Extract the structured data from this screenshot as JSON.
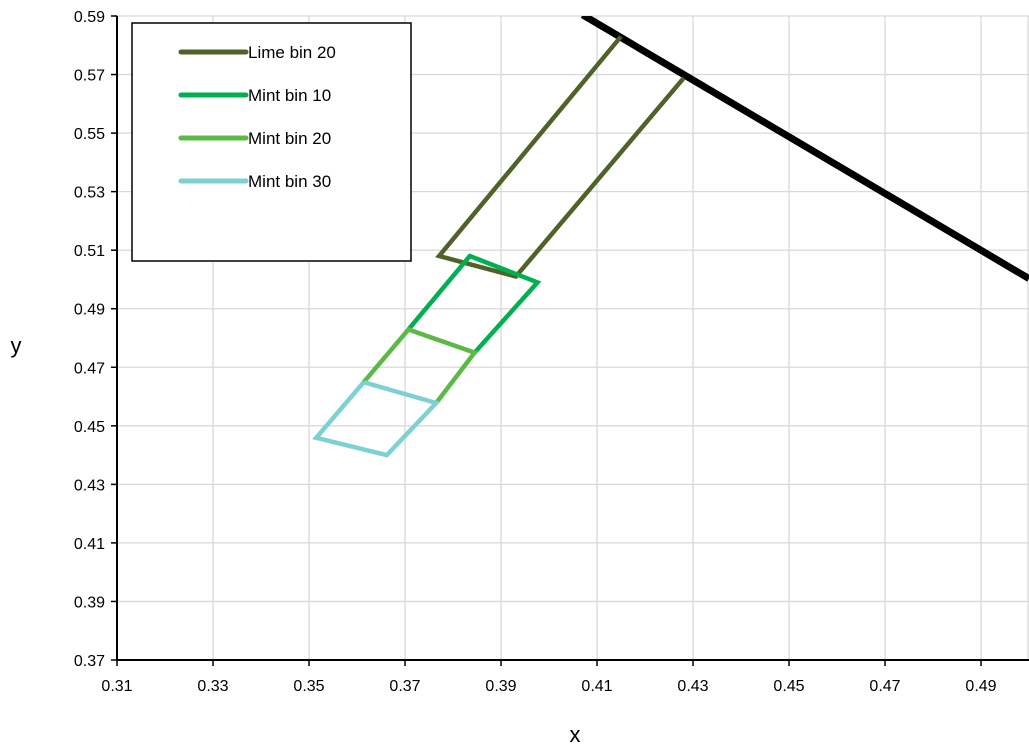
{
  "chart_data": {
    "type": "line",
    "title": "",
    "xlabel": "x",
    "ylabel": "y",
    "xlim": [
      0.31,
      0.5
    ],
    "ylim": [
      0.37,
      0.59
    ],
    "x_ticks": [
      "0.31",
      "0.33",
      "0.35",
      "0.37",
      "0.39",
      "0.41",
      "0.43",
      "0.45",
      "0.47",
      "0.49"
    ],
    "y_ticks": [
      "0.37",
      "0.39",
      "0.41",
      "0.43",
      "0.45",
      "0.47",
      "0.49",
      "0.51",
      "0.53",
      "0.55",
      "0.57",
      "0.59"
    ],
    "grid": true,
    "legend_position": "top-left",
    "series": [
      {
        "name": "",
        "color": "#000000",
        "points": [
          [
            0.407,
            0.5904
          ],
          [
            0.4292,
            0.5689
          ],
          [
            0.5,
            0.5003
          ]
        ]
      },
      {
        "name": "Lime bin 20",
        "color": "#4f6228",
        "points": [
          [
            0.415,
            0.583
          ],
          [
            0.3771,
            0.508
          ],
          [
            0.3931,
            0.501
          ],
          [
            0.4281,
            0.5689
          ]
        ]
      },
      {
        "name": "Mint bin 10",
        "color": "#00b050",
        "points": [
          [
            0.3707,
            0.4829
          ],
          [
            0.3835,
            0.508
          ],
          [
            0.3976,
            0.499
          ],
          [
            0.3845,
            0.475
          ]
        ]
      },
      {
        "name": "Mint bin 20",
        "color": "#5cb946",
        "points": [
          [
            0.3614,
            0.4649
          ],
          [
            0.3707,
            0.4829
          ],
          [
            0.3845,
            0.475
          ],
          [
            0.3765,
            0.4578
          ]
        ]
      },
      {
        "name": "Mint bin 30",
        "color": "#7fd0d2",
        "points": [
          [
            0.3614,
            0.4649
          ],
          [
            0.3765,
            0.4578
          ],
          [
            0.3662,
            0.44
          ],
          [
            0.3515,
            0.4459
          ],
          [
            0.3614,
            0.4649
          ]
        ]
      }
    ]
  }
}
